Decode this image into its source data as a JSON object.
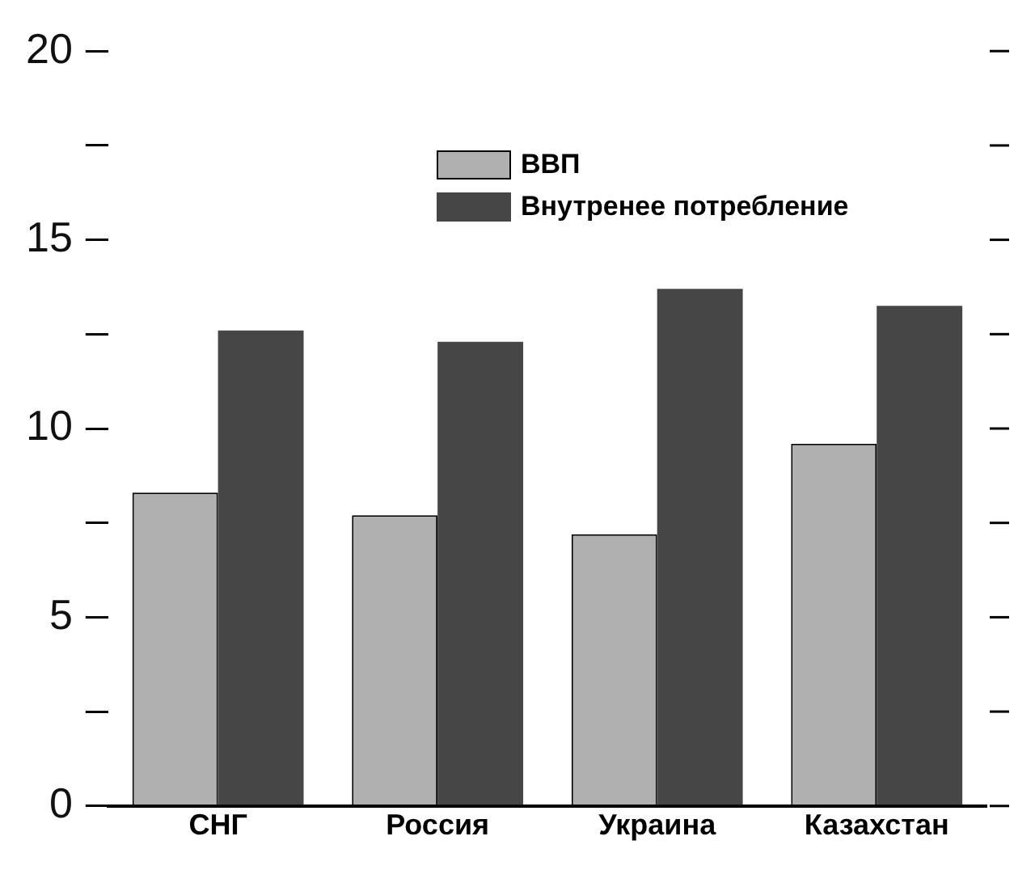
{
  "chart_data": {
    "type": "bar",
    "categories": [
      "СНГ",
      "Россия",
      "Украина",
      "Казахстан"
    ],
    "series": [
      {
        "name": "ВВП",
        "color": "#b0b0b0",
        "values": [
          8.3,
          7.7,
          7.2,
          9.6
        ]
      },
      {
        "name": "Внутренее потребление",
        "color": "#464646",
        "values": [
          12.6,
          12.3,
          13.7,
          13.25
        ]
      }
    ],
    "ylim": [
      0,
      20
    ],
    "yticks": [
      0,
      {
        "value": 2.5,
        "label": null
      },
      5,
      {
        "value": 7.5,
        "label": null
      },
      10,
      {
        "value": 12.5,
        "label": null
      },
      15,
      {
        "value": 17.5,
        "label": null
      },
      20
    ],
    "grid": false,
    "legend": "top right"
  }
}
